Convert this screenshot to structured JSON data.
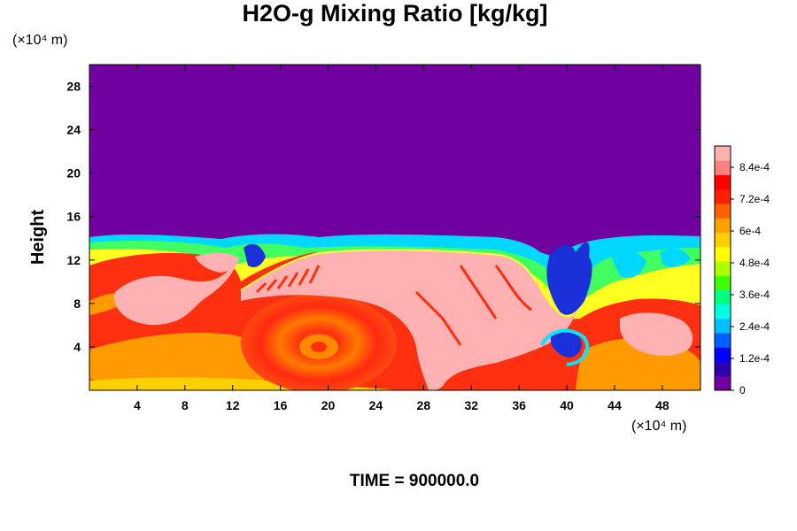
{
  "chart_data": {
    "type": "heatmap",
    "title": "H2O-g Mixing Ratio [kg/kg]",
    "ylabel": "Height",
    "y_unit": "(×10⁴ m)",
    "x_unit": "(×10⁴ m)",
    "x_ticks": [
      "4",
      "8",
      "12",
      "16",
      "20",
      "24",
      "28",
      "32",
      "36",
      "40",
      "44",
      "48"
    ],
    "y_ticks": [
      "4",
      "8",
      "12",
      "16",
      "20",
      "24",
      "28"
    ],
    "xlim": [
      0,
      51.2
    ],
    "ylim": [
      0,
      30
    ],
    "colorbar": {
      "ticks": [
        "0",
        "1.2e-4",
        "2.4e-4",
        "3.6e-4",
        "4.8e-4",
        "6e-4",
        "7.2e-4",
        "8.4e-4"
      ],
      "range": [
        0,
        0.00092
      ],
      "colors": [
        "#7000a0",
        "#3000b0",
        "#0000ff",
        "#0060ff",
        "#00c0ff",
        "#00ffe0",
        "#00ff80",
        "#40ff00",
        "#b0ff00",
        "#ffff00",
        "#ffd000",
        "#ffa000",
        "#ff6000",
        "#ff2000",
        "#ff0000",
        "#ff8080",
        "#ffb0b0"
      ]
    },
    "time_label": "TIME = 900000.0"
  },
  "colors": {
    "background": "#7000a0",
    "moist": "#ff3c10",
    "orange": "#ff9a00",
    "pink": "#ffb0b0",
    "blue": "#1030e0",
    "cyan": "#00d8ff",
    "green": "#40ff40",
    "yellow": "#ffff00"
  }
}
